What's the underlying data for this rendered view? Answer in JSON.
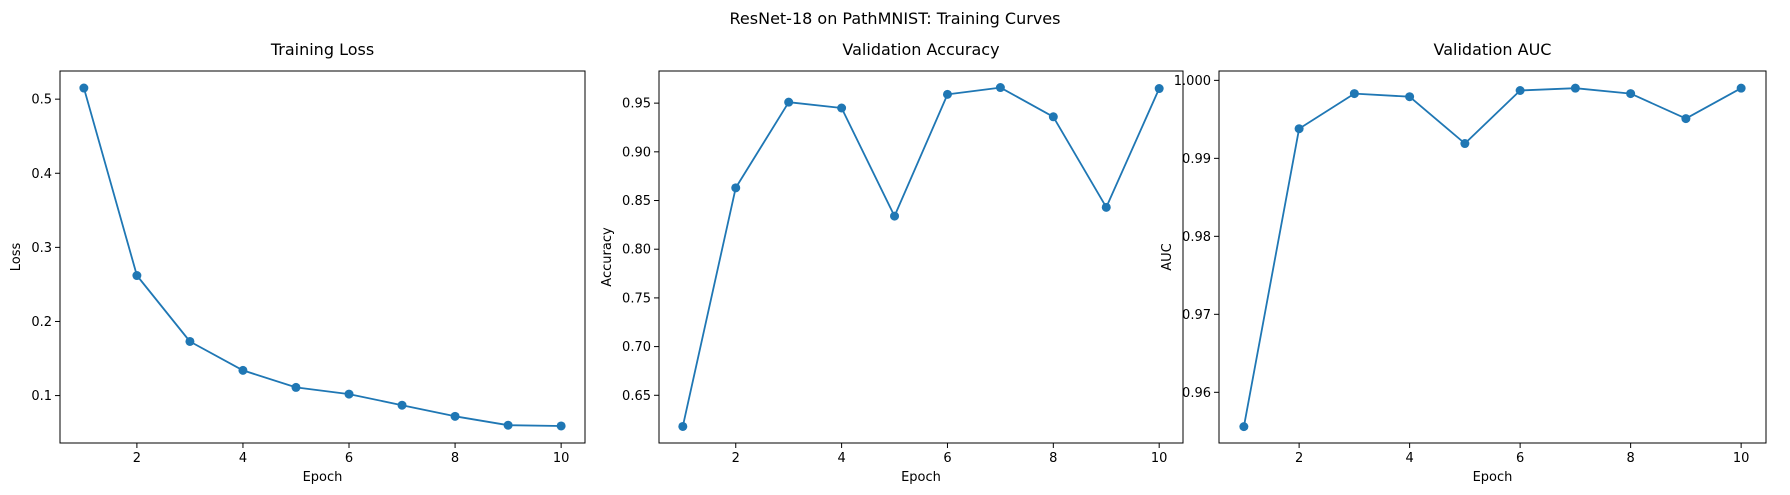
{
  "figure": {
    "suptitle": "ResNet-18 on PathMNIST: Training Curves"
  },
  "colors": {
    "series": "#1f77b4",
    "axes": "#000000",
    "background": "#ffffff"
  },
  "chart_data": [
    {
      "type": "line",
      "title": "Training Loss",
      "xlabel": "Epoch",
      "ylabel": "Loss",
      "x": [
        1,
        2,
        3,
        4,
        5,
        6,
        7,
        8,
        9,
        10
      ],
      "values": [
        0.515,
        0.262,
        0.173,
        0.134,
        0.111,
        0.102,
        0.087,
        0.072,
        0.06,
        0.059
      ],
      "xlim": [
        0.55,
        10.45
      ],
      "ylim": [
        0.036,
        0.538
      ],
      "xticks": [
        2,
        4,
        6,
        8,
        10
      ],
      "xtick_labels": [
        "2",
        "4",
        "6",
        "8",
        "10"
      ],
      "yticks": [
        0.1,
        0.2,
        0.3,
        0.4,
        0.5
      ],
      "ytick_labels": [
        "0.1",
        "0.2",
        "0.3",
        "0.4",
        "0.5"
      ],
      "grid": false,
      "marker": "circle"
    },
    {
      "type": "line",
      "title": "Validation Accuracy",
      "xlabel": "Epoch",
      "ylabel": "Accuracy",
      "x": [
        1,
        2,
        3,
        4,
        5,
        6,
        7,
        8,
        9,
        10
      ],
      "values": [
        0.618,
        0.863,
        0.951,
        0.945,
        0.834,
        0.959,
        0.966,
        0.936,
        0.843,
        0.965
      ],
      "xlim": [
        0.55,
        10.45
      ],
      "ylim": [
        0.601,
        0.983
      ],
      "xticks": [
        2,
        4,
        6,
        8,
        10
      ],
      "xtick_labels": [
        "2",
        "4",
        "6",
        "8",
        "10"
      ],
      "yticks": [
        0.65,
        0.7,
        0.75,
        0.8,
        0.85,
        0.9,
        0.95
      ],
      "ytick_labels": [
        "0.65",
        "0.70",
        "0.75",
        "0.80",
        "0.85",
        "0.90",
        "0.95"
      ],
      "grid": false,
      "marker": "circle"
    },
    {
      "type": "line",
      "title": "Validation AUC",
      "xlabel": "Epoch",
      "ylabel": "AUC",
      "x": [
        1,
        2,
        3,
        4,
        5,
        6,
        7,
        8,
        9,
        10
      ],
      "values": [
        0.9556,
        0.9938,
        0.9983,
        0.9979,
        0.9919,
        0.9987,
        0.999,
        0.9983,
        0.9951,
        0.999
      ],
      "xlim": [
        0.55,
        10.45
      ],
      "ylim": [
        0.9535,
        1.0012
      ],
      "xticks": [
        2,
        4,
        6,
        8,
        10
      ],
      "xtick_labels": [
        "2",
        "4",
        "6",
        "8",
        "10"
      ],
      "yticks": [
        0.96,
        0.97,
        0.98,
        0.99,
        1.0
      ],
      "ytick_labels": [
        "0.96",
        "0.97",
        "0.98",
        "0.99",
        "1.000"
      ],
      "grid": false,
      "marker": "circle"
    }
  ]
}
